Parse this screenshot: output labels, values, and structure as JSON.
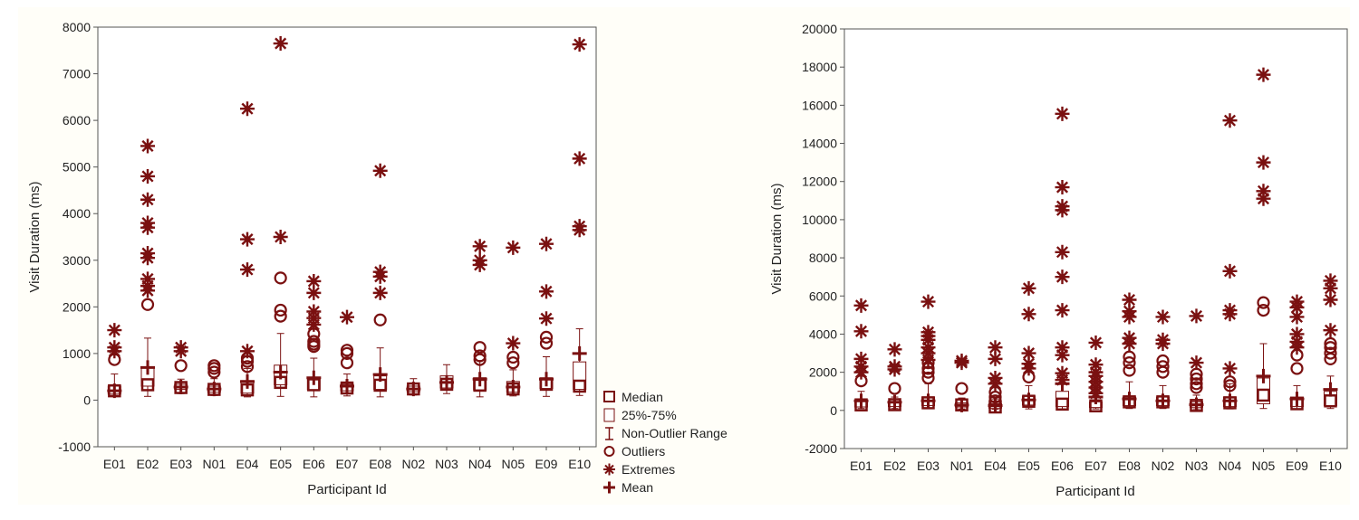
{
  "colors": {
    "mark": "#7a1010",
    "panel_bg": "#fffef8",
    "grid": "#cfcfcf"
  },
  "legend": {
    "median": "Median",
    "iqr": "25%-75%",
    "range": "Non-Outlier Range",
    "outliers": "Outliers",
    "extremes": "Extremes",
    "mean": "Mean"
  },
  "chart_data": [
    {
      "type": "box",
      "title": "",
      "xlabel": "Participant Id",
      "ylabel": "Visit Duration (ms)",
      "ylim": [
        -1000,
        8000
      ],
      "yticks": [
        -1000,
        0,
        1000,
        2000,
        3000,
        4000,
        5000,
        6000,
        7000,
        8000
      ],
      "categories": [
        "E01",
        "E02",
        "E03",
        "N01",
        "E04",
        "E05",
        "E06",
        "E07",
        "E08",
        "N02",
        "N03",
        "N04",
        "N05",
        "E09",
        "E10"
      ],
      "boxes": [
        {
          "cat": "E01",
          "min": 100,
          "q1": 130,
          "median": 200,
          "q3": 300,
          "max": 560,
          "mean": 200,
          "outliers": [
            870
          ],
          "extremes": [
            1050,
            1130,
            1500
          ]
        },
        {
          "cat": "E02",
          "min": 80,
          "q1": 300,
          "median": 330,
          "q3": 700,
          "max": 1330,
          "mean": 700,
          "outliers": [
            2050
          ],
          "extremes": [
            2350,
            2450,
            2600,
            3050,
            3150,
            3700,
            3800,
            4300,
            4800,
            5450
          ]
        },
        {
          "cat": "E03",
          "min": 140,
          "q1": 230,
          "median": 270,
          "q3": 340,
          "max": 450,
          "mean": 280,
          "outliers": [
            740
          ],
          "extremes": [
            1050,
            1130
          ]
        },
        {
          "cat": "N01",
          "min": 100,
          "q1": 170,
          "median": 230,
          "q3": 300,
          "max": 460,
          "mean": 240,
          "outliers": [
            600,
            680,
            740
          ],
          "extremes": []
        },
        {
          "cat": "E04",
          "min": 70,
          "q1": 150,
          "median": 220,
          "q3": 420,
          "max": 680,
          "mean": 400,
          "outliers": [
            720,
            830,
            900
          ],
          "extremes": [
            1050,
            2800,
            3450,
            6250
          ]
        },
        {
          "cat": "E05",
          "min": 80,
          "q1": 330,
          "median": 380,
          "q3": 750,
          "max": 1430,
          "mean": 600,
          "outliers": [
            1800,
            1930,
            2620
          ],
          "extremes": [
            3500,
            7650
          ]
        },
        {
          "cat": "E06",
          "min": 70,
          "q1": 220,
          "median": 330,
          "q3": 480,
          "max": 900,
          "mean": 480,
          "outliers": [
            1150,
            1200,
            1260,
            1420
          ],
          "extremes": [
            1620,
            1760,
            1900,
            2300,
            2550
          ]
        },
        {
          "cat": "E07",
          "min": 90,
          "q1": 200,
          "median": 260,
          "q3": 340,
          "max": 560,
          "mean": 300,
          "outliers": [
            800,
            1000,
            1070
          ],
          "extremes": [
            1780
          ]
        },
        {
          "cat": "E08",
          "min": 70,
          "q1": 230,
          "median": 320,
          "q3": 520,
          "max": 1120,
          "mean": 550,
          "outliers": [
            1720
          ],
          "extremes": [
            2300,
            2650,
            2750,
            4920
          ]
        },
        {
          "cat": "N02",
          "min": 110,
          "q1": 180,
          "median": 240,
          "q3": 300,
          "max": 460,
          "mean": 240,
          "outliers": [],
          "extremes": []
        },
        {
          "cat": "N03",
          "min": 140,
          "q1": 260,
          "median": 340,
          "q3": 520,
          "max": 760,
          "mean": 380,
          "outliers": [],
          "extremes": []
        },
        {
          "cat": "N04",
          "min": 70,
          "q1": 220,
          "median": 320,
          "q3": 480,
          "max": 850,
          "mean": 450,
          "outliers": [
            870,
            950,
            1130
          ],
          "extremes": [
            2900,
            3000,
            3300
          ]
        },
        {
          "cat": "N05",
          "min": 90,
          "q1": 170,
          "median": 240,
          "q3": 400,
          "max": 650,
          "mean": 280,
          "outliers": [
            800,
            920
          ],
          "extremes": [
            1220,
            3270
          ]
        },
        {
          "cat": "E09",
          "min": 80,
          "q1": 250,
          "median": 340,
          "q3": 480,
          "max": 930,
          "mean": 450,
          "outliers": [
            1220,
            1350
          ],
          "extremes": [
            1750,
            2330,
            3350
          ]
        },
        {
          "cat": "E10",
          "min": 100,
          "q1": 230,
          "median": 300,
          "q3": 820,
          "max": 1530,
          "mean": 1000,
          "outliers": [],
          "extremes": [
            3650,
            3730,
            5180,
            7630
          ]
        }
      ]
    },
    {
      "type": "box",
      "title": "",
      "xlabel": "Participant Id",
      "ylabel": "Visit Duration (ms)",
      "ylim": [
        -2000,
        20000
      ],
      "yticks": [
        -2000,
        0,
        2000,
        4000,
        6000,
        8000,
        10000,
        12000,
        14000,
        16000,
        18000,
        20000
      ],
      "categories": [
        "E01",
        "E02",
        "E03",
        "N01",
        "E04",
        "E05",
        "E06",
        "E07",
        "E08",
        "N02",
        "N03",
        "N04",
        "N05",
        "E09",
        "E10"
      ],
      "boxes": [
        {
          "cat": "E01",
          "min": 100,
          "q1": 180,
          "median": 290,
          "q3": 500,
          "max": 1000,
          "mean": 500,
          "outliers": [
            1550
          ],
          "extremes": [
            2000,
            2300,
            2700,
            4150,
            5500
          ]
        },
        {
          "cat": "E02",
          "min": 100,
          "q1": 200,
          "median": 300,
          "q3": 420,
          "max": 700,
          "mean": 430,
          "outliers": [
            1150
          ],
          "extremes": [
            2150,
            2300,
            3200
          ]
        },
        {
          "cat": "E03",
          "min": 100,
          "q1": 250,
          "median": 400,
          "q3": 700,
          "max": 1400,
          "mean": 500,
          "outliers": [
            1700,
            2000,
            2200,
            2500
          ],
          "extremes": [
            2650,
            3000,
            3300,
            3700,
            3900,
            4100,
            5700
          ]
        },
        {
          "cat": "N01",
          "min": 80,
          "q1": 180,
          "median": 290,
          "q3": 400,
          "max": 650,
          "mean": 280,
          "outliers": [
            1150
          ],
          "extremes": [
            2500,
            2600
          ]
        },
        {
          "cat": "E04",
          "min": 60,
          "q1": 120,
          "median": 180,
          "q3": 350,
          "max": 600,
          "mean": 250,
          "outliers": [
            500,
            700,
            950
          ],
          "extremes": [
            1400,
            1700,
            2700,
            3300
          ]
        },
        {
          "cat": "E05",
          "min": 80,
          "q1": 280,
          "median": 480,
          "q3": 750,
          "max": 1300,
          "mean": 550,
          "outliers": [
            1750
          ],
          "extremes": [
            2200,
            2450,
            3000,
            5050,
            6400
          ]
        },
        {
          "cat": "E06",
          "min": 80,
          "q1": 200,
          "median": 330,
          "q3": 1000,
          "max": 2000,
          "mean": 1400,
          "outliers": [],
          "extremes": [
            1600,
            1950,
            2900,
            3300,
            5250,
            7000,
            8300,
            10500,
            10700,
            11700,
            15550
          ]
        },
        {
          "cat": "E07",
          "min": 80,
          "q1": 150,
          "median": 240,
          "q3": 450,
          "max": 800,
          "mean": 700,
          "outliers": [],
          "extremes": [
            900,
            1200,
            1500,
            1800,
            2000,
            2400,
            3550
          ]
        },
        {
          "cat": "E08",
          "min": 100,
          "q1": 250,
          "median": 450,
          "q3": 700,
          "max": 1500,
          "mean": 600,
          "outliers": [
            2100,
            2500,
            2800
          ],
          "extremes": [
            3500,
            3800,
            4900,
            5200,
            5800
          ]
        },
        {
          "cat": "N02",
          "min": 100,
          "q1": 250,
          "median": 450,
          "q3": 700,
          "max": 1300,
          "mean": 500,
          "outliers": [
            2000,
            2300,
            2600
          ],
          "extremes": [
            3500,
            3700,
            4900
          ]
        },
        {
          "cat": "N03",
          "min": 80,
          "q1": 170,
          "median": 260,
          "q3": 450,
          "max": 800,
          "mean": 300,
          "outliers": [
            1200,
            1400,
            1650,
            1900
          ],
          "extremes": [
            2500,
            4950
          ]
        },
        {
          "cat": "N04",
          "min": 80,
          "q1": 200,
          "median": 400,
          "q3": 700,
          "max": 1400,
          "mean": 500,
          "outliers": [
            1300,
            1500
          ],
          "extremes": [
            2200,
            5050,
            5250,
            7300,
            15200
          ]
        },
        {
          "cat": "N05",
          "min": 100,
          "q1": 350,
          "median": 800,
          "q3": 1700,
          "max": 3500,
          "mean": 1800,
          "outliers": [
            5250,
            5650
          ],
          "extremes": [
            11100,
            11500,
            13000,
            17600
          ]
        },
        {
          "cat": "E09",
          "min": 80,
          "q1": 200,
          "median": 350,
          "q3": 700,
          "max": 1300,
          "mean": 600,
          "outliers": [
            2200,
            2900
          ],
          "extremes": [
            3300,
            3600,
            4000,
            4900,
            5400,
            5700
          ]
        },
        {
          "cat": "E10",
          "min": 100,
          "q1": 250,
          "median": 500,
          "q3": 1000,
          "max": 1800,
          "mean": 1100,
          "outliers": [
            2700,
            3000,
            3300,
            3500
          ],
          "extremes": [
            4200,
            5800,
            6400,
            6800
          ]
        }
      ]
    }
  ]
}
